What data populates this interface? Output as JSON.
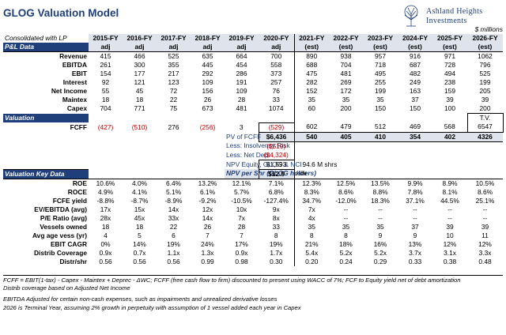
{
  "title": "GLOG Valuation Model",
  "logo": {
    "name_line1": "Ashland Heights",
    "name_line2": "Investments",
    "icon": "tree-icon"
  },
  "units": "$ millions",
  "header": {
    "caption": "Consolidated with LP",
    "years": [
      "2015-FY",
      "2016-FY",
      "2017-FY",
      "2018-FY",
      "2019-FY",
      "2020-FY",
      "2021-FY",
      "2022-FY",
      "2023-FY",
      "2024-FY",
      "2025-FY",
      "2026-FY"
    ],
    "subs": [
      "adj",
      "adj",
      "adj",
      "adj",
      "adj",
      "adj",
      "(est)",
      "(est)",
      "(est)",
      "(est)",
      "(est)",
      "(est)"
    ]
  },
  "sections": {
    "pl": "P&L Data",
    "valuation": "Valuation",
    "keydata": "Valuation Key Data"
  },
  "pl_rows": [
    {
      "label": "Revenue",
      "vals": [
        "415",
        "466",
        "525",
        "635",
        "664",
        "700",
        "890",
        "938",
        "957",
        "916",
        "971",
        "1062"
      ]
    },
    {
      "label": "EBITDA",
      "vals": [
        "261",
        "300",
        "355",
        "445",
        "454",
        "558",
        "688",
        "704",
        "718",
        "687",
        "728",
        "796"
      ]
    },
    {
      "label": "EBIT",
      "vals": [
        "154",
        "177",
        "217",
        "292",
        "286",
        "373",
        "475",
        "481",
        "495",
        "482",
        "494",
        "525"
      ]
    },
    {
      "label": "Interest",
      "vals": [
        "92",
        "121",
        "123",
        "109",
        "191",
        "257",
        "282",
        "269",
        "255",
        "249",
        "238",
        "199"
      ]
    },
    {
      "label": "Net Income",
      "vals": [
        "55",
        "45",
        "72",
        "156",
        "109",
        "76",
        "152",
        "172",
        "199",
        "163",
        "159",
        "205"
      ]
    },
    {
      "label": "Maintex",
      "vals": [
        "18",
        "18",
        "22",
        "26",
        "28",
        "33",
        "35",
        "35",
        "35",
        "37",
        "39",
        "39"
      ]
    },
    {
      "label": "Capex",
      "vals": [
        "704",
        "771",
        "75",
        "673",
        "481",
        "1074",
        "60",
        "200",
        "150",
        "150",
        "100",
        "200"
      ]
    }
  ],
  "tv_label": "T.V.",
  "tv_value": "6547",
  "fcff": {
    "label": "FCFF",
    "vals": [
      "(427)",
      "(510)",
      "276",
      "(256)",
      "3",
      "(529)",
      "602",
      "479",
      "512",
      "469",
      "568",
      "6547"
    ]
  },
  "pv": {
    "label": "PV of FCFF",
    "total": "$6,436",
    "vals": [
      "540",
      "405",
      "410",
      "354",
      "402",
      "4326"
    ]
  },
  "less_insolvency": {
    "label": "Less: Insolvency Risk",
    "value": "($519)"
  },
  "less_debt": {
    "label": "Less: Net Debt",
    "value": "($4,324)"
  },
  "npv_equity": {
    "label": "NPV Equity, GLOG & NCI",
    "value": "$1,593",
    "shares": "94.6 M shrs"
  },
  "npv_share": {
    "label": "NPV per Shr (GLOG holders)",
    "value": "$12.9",
    "unit": "/shr"
  },
  "key_rows": [
    {
      "label": "ROE",
      "vals": [
        "10.6%",
        "4.0%",
        "6.4%",
        "13.2%",
        "12.1%",
        "7.1%",
        "12.3%",
        "12.5%",
        "13.5%",
        "9.9%",
        "8.9%",
        "10.5%"
      ]
    },
    {
      "label": "ROCE",
      "vals": [
        "4.9%",
        "4.1%",
        "5.1%",
        "6.1%",
        "5.7%",
        "6.8%",
        "8.3%",
        "8.6%",
        "8.8%",
        "7.8%",
        "8.1%",
        "8.6%"
      ]
    },
    {
      "label": "FCFE yield",
      "vals": [
        "-8.8%",
        "-8.7%",
        "-8.9%",
        "-9.2%",
        "-10.5%",
        "-127.4%",
        "34.7%",
        "-12.0%",
        "18.3%",
        "37.1%",
        "44.5%",
        "25.1%"
      ]
    },
    {
      "label": "EV/EBITDA (avg)",
      "vals": [
        "17x",
        "15x",
        "14x",
        "12x",
        "10x",
        "9x",
        "7x",
        "--",
        "--",
        "--",
        "--",
        "--"
      ]
    },
    {
      "label": "P/E Ratio (avg)",
      "vals": [
        "28x",
        "45x",
        "33x",
        "14x",
        "7x",
        "8x",
        "4x",
        "--",
        "--",
        "--",
        "--",
        "--"
      ]
    },
    {
      "label": "Vessels owned",
      "vals": [
        "18",
        "18",
        "22",
        "26",
        "28",
        "33",
        "35",
        "35",
        "35",
        "37",
        "39",
        "39"
      ]
    },
    {
      "label": "Avg age vess (yr)",
      "vals": [
        "4",
        "5",
        "6",
        "7",
        "7",
        "8",
        "8",
        "8",
        "9",
        "9",
        "10",
        "11"
      ]
    },
    {
      "label": "EBIT CAGR",
      "vals": [
        "0%",
        "14%",
        "19%",
        "24%",
        "17%",
        "19%",
        "21%",
        "18%",
        "16%",
        "13%",
        "12%",
        "12%"
      ]
    },
    {
      "label": "Distrib Coverage",
      "vals": [
        "0.9x",
        "0.7x",
        "1.1x",
        "1.3x",
        "0.9x",
        "1.7x",
        "5.4x",
        "5.2x",
        "5.2x",
        "3.7x",
        "3.1x",
        "3.3x"
      ]
    },
    {
      "label": "Distr/shr",
      "vals": [
        "0.56",
        "0.56",
        "0.56",
        "0.99",
        "0.98",
        "0.30",
        "0.20",
        "0.24",
        "0.29",
        "0.33",
        "0.38",
        "0.48"
      ]
    }
  ],
  "notes": [
    "FCFF = EBIT(1-tax) - Capex  - Maintex + Deprec - ΔWC; FCFF (free cash flow to firm) discounted to present using WACC of 7%; FCF to Equity yield net of debt amortization",
    "Distrib coverage based on Adjusted Net Income",
    "EBITDA Adjusted for certain non-cash expenses, such as impairments and unrealized derivative losses",
    "2026 is Terminal Year, assuming 2% growth in perpetuity with assumption of 1 vessel added each year in Capex"
  ]
}
